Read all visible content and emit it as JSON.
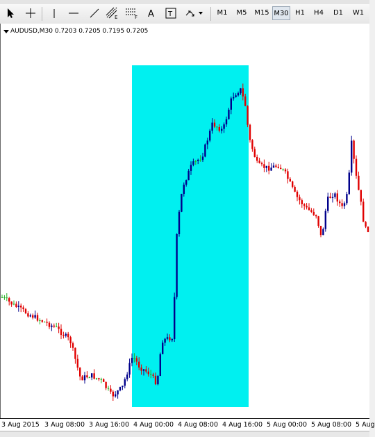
{
  "toolbar": {
    "tools": [
      {
        "name": "cursor-icon"
      },
      {
        "name": "crosshair-icon"
      },
      {
        "name": "vertical-line-icon"
      },
      {
        "name": "horizontal-line-icon"
      },
      {
        "name": "trendline-icon"
      },
      {
        "name": "equidistant-channel-icon"
      },
      {
        "name": "fibonacci-retracement-icon"
      },
      {
        "name": "text-label-icon"
      },
      {
        "name": "arrows-dropdown-icon"
      }
    ],
    "timeframes": [
      "M1",
      "M5",
      "M15",
      "M30",
      "H1",
      "H4",
      "D1",
      "W1"
    ],
    "active_timeframe": "M30"
  },
  "chart": {
    "header": "AUDUSD,M30  0.7203 0.7205 0.7195 0.7205",
    "highlight_color": "#00f0f0",
    "bull_color": "#00008b",
    "bear_color": "#e00000",
    "doji_color": "#22b022"
  },
  "xaxis": {
    "labels": [
      "3 Aug 2015",
      "3 Aug 08:00",
      "3 Aug 16:00",
      "4 Aug 00:00",
      "4 Aug 08:00",
      "4 Aug 16:00",
      "5 Aug 00:00",
      "5 Aug 08:00",
      "5 Aug"
    ]
  }
}
